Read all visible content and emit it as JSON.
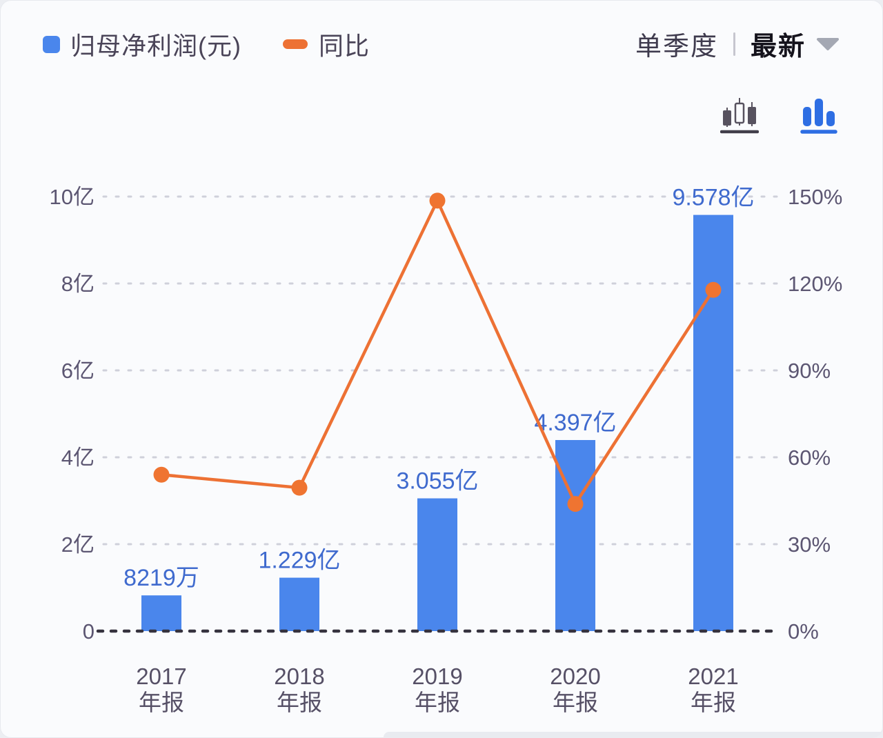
{
  "legend": {
    "items": [
      {
        "label": "归母净利润(元)",
        "marker": "square",
        "color": "#4a86ec"
      },
      {
        "label": "同比",
        "marker": "dash",
        "color": "#ed7134"
      }
    ]
  },
  "controls": {
    "period_label": "单季度",
    "latest_label": "最新"
  },
  "view_toggles": [
    {
      "name": "candlestick-view",
      "active": false
    },
    {
      "name": "bar-view",
      "active": true
    }
  ],
  "colors": {
    "bar": "#4a86ec",
    "bar_value_label": "#3f6ace",
    "line": "#ed7134",
    "point": "#ef7431",
    "axis_tick": "#5c5672",
    "x_label": "#565066",
    "grid_light": "#cfd0da",
    "grid_zero": "#35323e",
    "icon_gray": "#57525f",
    "icon_blue": "#2e6ee3"
  },
  "chart_data": {
    "type": "bar",
    "subtype": "bar-with-line-overlay",
    "categories": [
      {
        "year": "2017",
        "period": "年报"
      },
      {
        "year": "2018",
        "period": "年报"
      },
      {
        "year": "2019",
        "period": "年报"
      },
      {
        "year": "2020",
        "period": "年报"
      },
      {
        "year": "2021",
        "period": "年报"
      }
    ],
    "series": [
      {
        "name": "归母净利润(元)",
        "type": "bar",
        "unit": "亿",
        "values": [
          0.8219,
          1.229,
          3.055,
          4.397,
          9.578
        ],
        "labels": [
          "8219万",
          "1.229亿",
          "3.055亿",
          "4.397亿",
          "9.578亿"
        ],
        "axis": "left"
      },
      {
        "name": "同比",
        "type": "line",
        "unit": "%",
        "values": [
          54.0,
          49.5,
          148.6,
          43.9,
          117.8
        ],
        "axis": "right"
      }
    ],
    "left_axis": {
      "ticks": [
        "10亿",
        "8亿",
        "6亿",
        "4亿",
        "2亿",
        "0"
      ],
      "min": 0,
      "max": 10
    },
    "right_axis": {
      "ticks": [
        "150%",
        "120%",
        "90%",
        "60%",
        "30%",
        "0%"
      ],
      "min": 0,
      "max": 150
    },
    "grid": "dotted",
    "legend_position": "top-left"
  }
}
